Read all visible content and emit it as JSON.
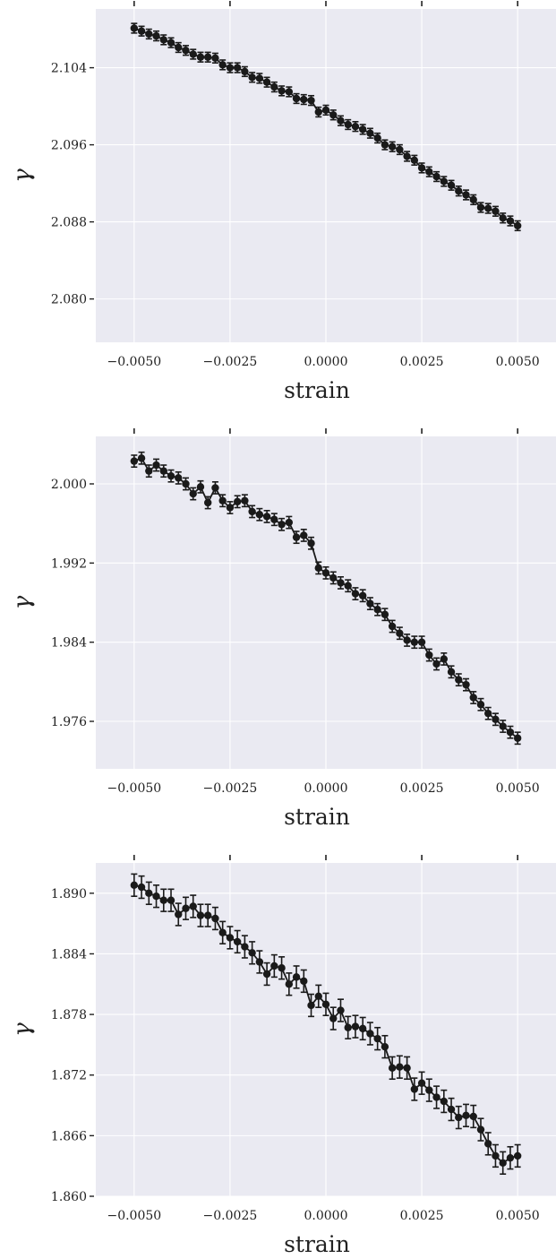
{
  "chart_data": [
    {
      "type": "line",
      "xlabel": "strain",
      "ylabel": "γ",
      "xlim": [
        -0.006,
        0.006
      ],
      "ylim": [
        2.0755,
        2.1101
      ],
      "x_ticks": [
        -0.005,
        -0.0025,
        0.0,
        0.0025,
        0.005
      ],
      "x_tick_labels": [
        "−0.0050",
        "−0.0025",
        "0.0000",
        "0.0025",
        "0.0050"
      ],
      "y_ticks": [
        2.08,
        2.088,
        2.096,
        2.104
      ],
      "y_tick_labels": [
        "2.080",
        "2.088",
        "2.096",
        "2.104"
      ],
      "grid": true,
      "series": [
        {
          "marker": "circle",
          "error": 0.0005,
          "values": [
            2.1081,
            2.1078,
            2.1075,
            2.1073,
            2.1069,
            2.1066,
            2.1061,
            2.1058,
            2.1054,
            2.1051,
            2.1051,
            2.105,
            2.1043,
            2.104,
            2.104,
            2.1036,
            2.103,
            2.1029,
            2.1025,
            2.102,
            2.1016,
            2.1015,
            2.1008,
            2.1007,
            2.1006,
            2.0994,
            2.0996,
            2.0991,
            2.0985,
            2.0981,
            2.0979,
            2.0976,
            2.0972,
            2.0967,
            2.096,
            2.0958,
            2.0955,
            2.0948,
            2.0944,
            2.0936,
            2.0932,
            2.0927,
            2.0922,
            2.0918,
            2.0912,
            2.0908,
            2.0903,
            2.0895,
            2.0894,
            2.0891,
            2.0884,
            2.0881,
            2.0876
          ]
        }
      ]
    },
    {
      "type": "line",
      "xlabel": "strain",
      "ylabel": "γ",
      "xlim": [
        -0.006,
        0.006
      ],
      "ylim": [
        1.9712,
        2.0048
      ],
      "x_ticks": [
        -0.005,
        -0.0025,
        0.0,
        0.0025,
        0.005
      ],
      "x_tick_labels": [
        "−0.0050",
        "−0.0025",
        "0.0000",
        "0.0025",
        "0.0050"
      ],
      "y_ticks": [
        1.976,
        1.984,
        1.992,
        2.0
      ],
      "y_tick_labels": [
        "1.976",
        "1.984",
        "1.992",
        "2.000"
      ],
      "grid": true,
      "series": [
        {
          "marker": "circle",
          "error": 0.0006,
          "values": [
            2.0023,
            2.0026,
            2.0013,
            2.0019,
            2.0013,
            2.0008,
            2.0006,
            2.0,
            1.999,
            1.9997,
            1.9981,
            1.9996,
            1.9983,
            1.9976,
            1.9982,
            1.9983,
            1.9972,
            1.9969,
            1.9967,
            1.9964,
            1.9959,
            1.9961,
            1.9946,
            1.9948,
            1.994,
            1.9915,
            1.991,
            1.9905,
            1.99,
            1.9897,
            1.9889,
            1.9887,
            1.9879,
            1.9873,
            1.9868,
            1.9856,
            1.9849,
            1.9842,
            1.984,
            1.984,
            1.9827,
            1.9818,
            1.9823,
            1.981,
            1.9802,
            1.9797,
            1.9784,
            1.9777,
            1.9768,
            1.9762,
            1.9755,
            1.9749,
            1.9743
          ]
        }
      ]
    },
    {
      "type": "line",
      "xlabel": "strain",
      "ylabel": "γ",
      "xlim": [
        -0.006,
        0.006
      ],
      "ylim": [
        1.86,
        1.893
      ],
      "x_ticks": [
        -0.005,
        -0.0025,
        0.0,
        0.0025,
        0.005
      ],
      "x_tick_labels": [
        "−0.0050",
        "−0.0025",
        "0.0000",
        "0.0025",
        "0.0050"
      ],
      "y_ticks": [
        1.86,
        1.866,
        1.872,
        1.878,
        1.884,
        1.89
      ],
      "y_tick_labels": [
        "1.860",
        "1.866",
        "1.872",
        "1.878",
        "1.884",
        "1.890"
      ],
      "grid": true,
      "series": [
        {
          "marker": "circle",
          "error": 0.0011,
          "values": [
            1.8908,
            1.8906,
            1.89,
            1.8897,
            1.8893,
            1.8893,
            1.8879,
            1.8885,
            1.8887,
            1.8878,
            1.8878,
            1.8875,
            1.8861,
            1.8856,
            1.8852,
            1.8847,
            1.8841,
            1.8832,
            1.882,
            1.8828,
            1.8826,
            1.881,
            1.8817,
            1.8813,
            1.8789,
            1.8798,
            1.879,
            1.8776,
            1.8784,
            1.8767,
            1.8768,
            1.8766,
            1.8761,
            1.8756,
            1.8748,
            1.8727,
            1.8728,
            1.8727,
            1.8706,
            1.8712,
            1.8705,
            1.8698,
            1.8694,
            1.8686,
            1.8678,
            1.868,
            1.8679,
            1.8666,
            1.8652,
            1.864,
            1.8633,
            1.8638,
            1.864
          ]
        }
      ]
    }
  ]
}
